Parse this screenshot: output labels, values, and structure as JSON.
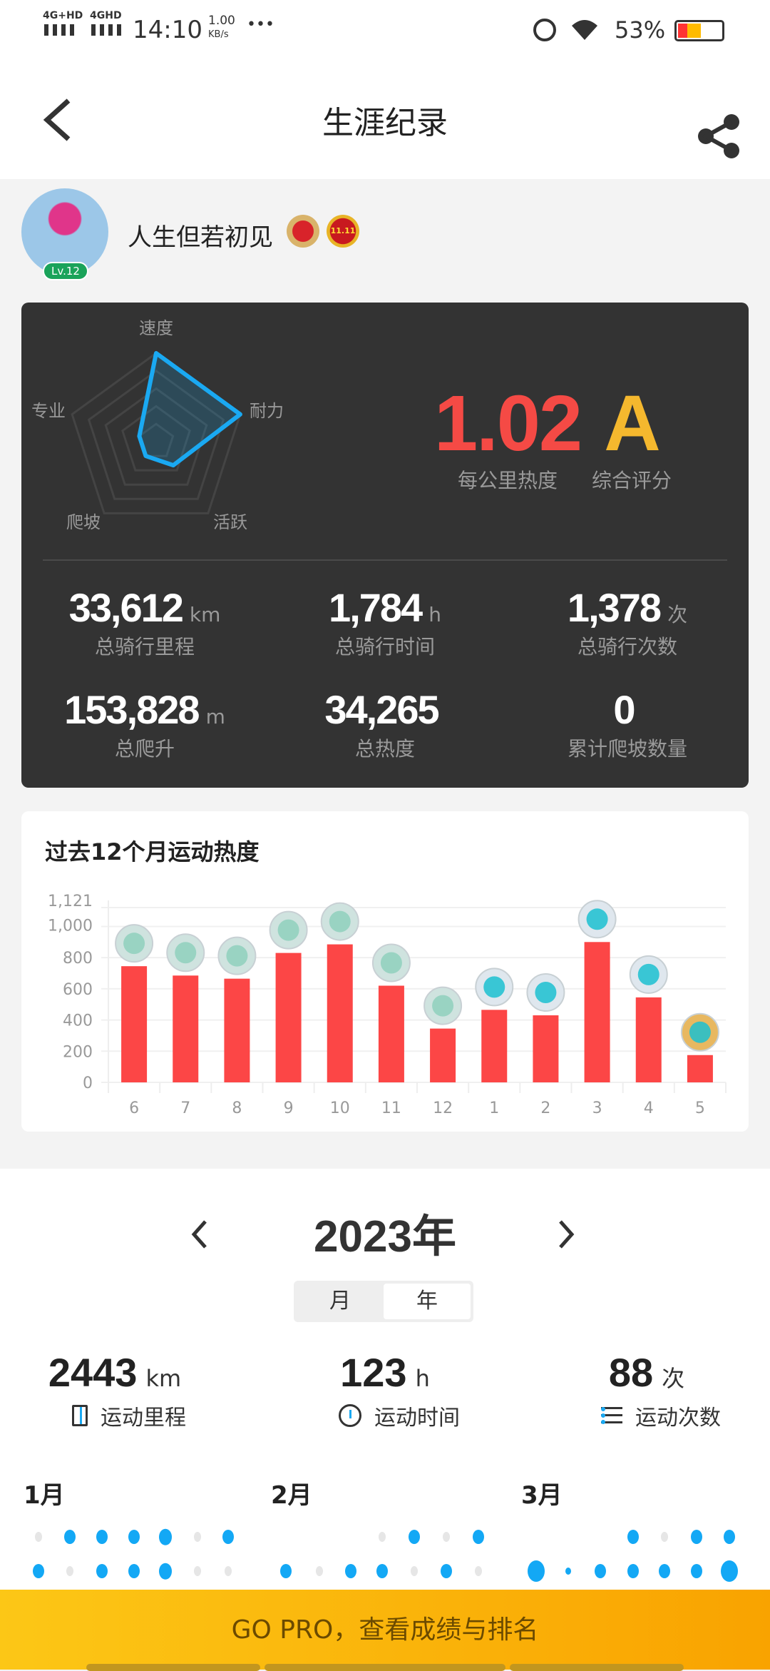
{
  "status": {
    "net1": "4G+HD",
    "net2": "4GHD",
    "time": "14:10",
    "speed_value": "1.00",
    "speed_unit": "KB/s",
    "more": "•••",
    "battery": "53%",
    "battery_level": 53
  },
  "header": {
    "title": "生涯纪录",
    "back_icon": "chevron-left-icon",
    "share_icon": "share-icon"
  },
  "profile": {
    "name": "人生但若初见",
    "level": "Lv.12",
    "badges": [
      "red-badge",
      "11.11-badge"
    ],
    "badge2_text": "11.11"
  },
  "radar": {
    "axes": [
      "速度",
      "耐力",
      "活跃",
      "爬坡",
      "专业"
    ],
    "values": [
      1.0,
      1.0,
      0.33,
      0.2,
      0.2
    ],
    "color": "#1aa9f2"
  },
  "score": {
    "heat_per_km": "1.02",
    "heat_per_km_label": "每公里热度",
    "rating": "A",
    "rating_label": "综合评分",
    "heat_color": "#f54a45",
    "rating_color": "#f5b82e"
  },
  "stats": [
    {
      "value": "33,612",
      "unit": "km",
      "label": "总骑行里程"
    },
    {
      "value": "1,784",
      "unit": "h",
      "label": "总骑行时间"
    },
    {
      "value": "1,378",
      "unit": "次",
      "label": "总骑行次数"
    },
    {
      "value": "153,828",
      "unit": "m",
      "label": "总爬升"
    },
    {
      "value": "34,265",
      "unit": "",
      "label": "总热度"
    },
    {
      "value": "0",
      "unit": "",
      "label": "累计爬坡数量"
    }
  ],
  "chart_data": {
    "type": "bar",
    "title": "过去12个月运动热度",
    "categories": [
      "6",
      "7",
      "8",
      "9",
      "10",
      "11",
      "12",
      "1",
      "2",
      "3",
      "4",
      "5"
    ],
    "values": [
      745,
      685,
      665,
      830,
      885,
      620,
      345,
      465,
      430,
      900,
      545,
      175
    ],
    "yticks": [
      "0",
      "200",
      "400",
      "600",
      "800",
      "1,000",
      "1,121"
    ],
    "ylim": [
      0,
      1121
    ],
    "grid": true,
    "bar_color": "#fc4646",
    "medals": [
      "silver",
      "silver",
      "silver",
      "silver",
      "silver",
      "silver",
      "silver",
      "cyan",
      "cyan",
      "cyan",
      "cyan",
      "gold"
    ]
  },
  "year": {
    "title": "2023年",
    "prev_icon": "chevron-left-icon",
    "next_icon": "chevron-right-icon",
    "seg": [
      "月",
      "年"
    ],
    "selected": "年"
  },
  "summary": [
    {
      "value": "2443",
      "unit": "km",
      "label": "运动里程",
      "icon": "road-icon"
    },
    {
      "value": "123",
      "unit": "h",
      "label": "运动时间",
      "icon": "clock-icon"
    },
    {
      "value": "88",
      "unit": "次",
      "label": "运动次数",
      "icon": "list-icon"
    }
  ],
  "months": [
    {
      "label": "1月",
      "rows": [
        [
          0,
          2,
          2,
          2,
          3,
          0,
          2
        ],
        [
          2,
          0,
          2,
          2,
          3,
          0,
          0
        ]
      ]
    },
    {
      "label": "2月",
      "rows": [
        [
          -1,
          -1,
          -1,
          0,
          2,
          0,
          2
        ],
        [
          2,
          0,
          2,
          2,
          0,
          2,
          0
        ]
      ]
    },
    {
      "label": "3月",
      "rows": [
        [
          -1,
          -1,
          -1,
          2,
          0,
          2,
          2
        ],
        [
          4,
          1,
          2,
          2,
          2,
          2,
          4
        ]
      ]
    }
  ],
  "banner": {
    "text": "GO PRO，查看成绩与排名"
  }
}
